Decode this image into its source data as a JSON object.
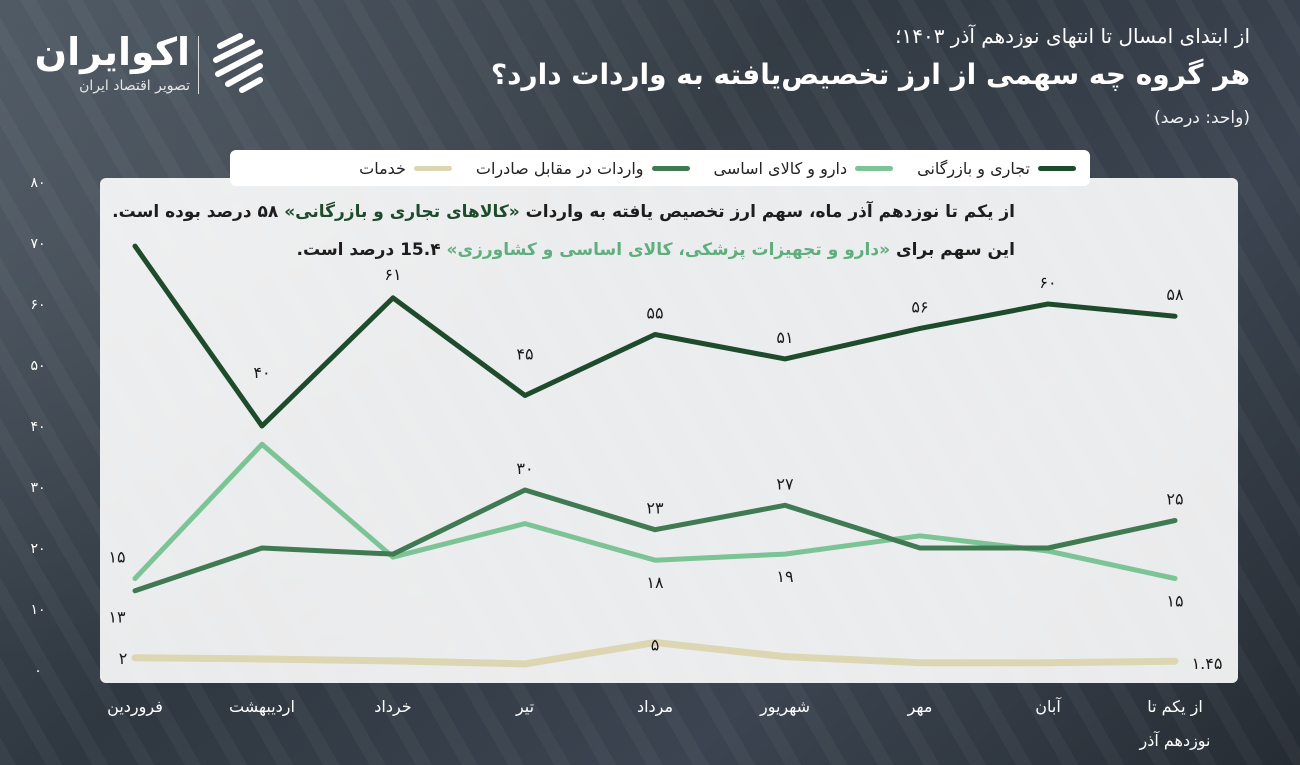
{
  "brand": {
    "name": "اکوایران",
    "tagline": "تصویر اقتصاد ایران"
  },
  "header": {
    "subtitle": "از ابتدای امسال تا انتهای نوزدهم آذر ۱۴۰۳؛",
    "title": "هر گروه چه سهمی از ارز تخصیص‌یافته به واردات دارد؟",
    "unit": "(واحد: درصد)"
  },
  "annotation": {
    "line1_pre": "از یکم تا نوزدهم آذر ماه، سهم ارز تخصیص یافته به واردات",
    "line1_highlight": "«کالاهای تجاری و بازرگانی»",
    "line1_post": "۵۸ درصد بوده است.",
    "line2_pre": "این سهم برای",
    "line2_highlight": "«دارو و تجهیزات پزشکی، کالای اساسی و کشاورزی»",
    "line2_post": "15.۴ درصد است."
  },
  "chart_data": {
    "type": "line",
    "categories": [
      "فروردین",
      "اردیبهشت",
      "خرداد",
      "تیر",
      "مرداد",
      "شهریور",
      "مهر",
      "آبان",
      "از یکم تا نوزدهم آذر"
    ],
    "ylim": [
      0,
      80
    ],
    "yticks": [
      0,
      10,
      20,
      30,
      40,
      50,
      60,
      70,
      80
    ],
    "ytick_labels": [
      "۰",
      "۱۰",
      "۲۰",
      "۳۰",
      "۴۰",
      "۵۰",
      "۶۰",
      "۷۰",
      "۸۰"
    ],
    "grid": false,
    "legend_position": "top",
    "series": [
      {
        "name": "تجاری و بازرگانی",
        "color": "#1e4b2c",
        "values": [
          69.5,
          40,
          61,
          45,
          55,
          51,
          56,
          60,
          58
        ],
        "labels": [
          "",
          "۴۰",
          "۶۱",
          "۴۵",
          "۵۵",
          "۵۱",
          "۵۶",
          "۶۰",
          "۵۸"
        ]
      },
      {
        "name": "دارو و کالای اساسی",
        "color": "#7cc495",
        "values": [
          15,
          37,
          18.5,
          24,
          18,
          19,
          22,
          19.5,
          15
        ],
        "labels": [
          "۱۵",
          "",
          "",
          "",
          "۱۸",
          "۱۹",
          "",
          "",
          "۱۵"
        ]
      },
      {
        "name": "واردات در مقابل صادرات",
        "color": "#3f7a53",
        "values": [
          13,
          20,
          19,
          29.5,
          23,
          27,
          20,
          20,
          24.5
        ],
        "labels": [
          "۱۳",
          "",
          "",
          "۳۰",
          "۲۳",
          "۲۷",
          "",
          "",
          "۲۵"
        ]
      },
      {
        "name": "خدمات",
        "color": "#ddd6b3",
        "values": [
          2,
          1.8,
          1.5,
          1,
          4.5,
          2.2,
          1.2,
          1.2,
          1.45
        ],
        "labels": [
          "۲",
          "",
          "",
          "",
          "۵",
          "",
          "",
          "",
          "۱.۴۵"
        ]
      }
    ]
  }
}
